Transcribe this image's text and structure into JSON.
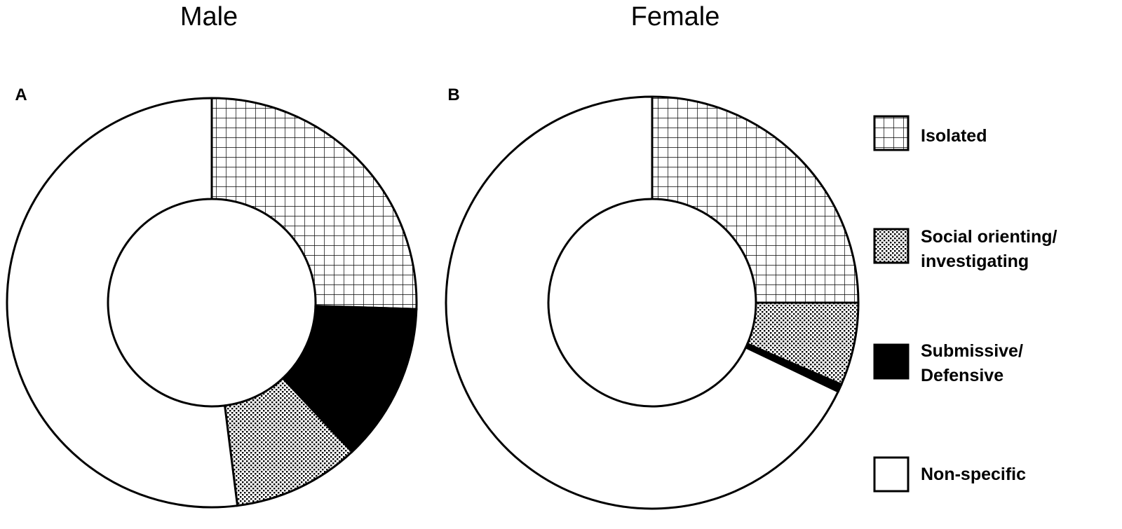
{
  "chart_data": [
    {
      "type": "pie",
      "panel": "A",
      "title": "Male",
      "slices": [
        {
          "label": "Isolated",
          "value": 25.5
        },
        {
          "label": "Submissive/ Defensive",
          "value": 12.5
        },
        {
          "label": "Social orienting/ investigating",
          "value": 10.0
        },
        {
          "label": "Non-specific",
          "value": 52.0
        }
      ]
    },
    {
      "type": "pie",
      "panel": "B",
      "title": "Female",
      "slices": [
        {
          "label": "Isolated",
          "value": 25.0
        },
        {
          "label": "Social orienting/ investigating",
          "value": 6.5
        },
        {
          "label": "Submissive/ Defensive",
          "value": 0.6
        },
        {
          "label": "Non-specific",
          "value": 67.9
        }
      ]
    }
  ],
  "legend": {
    "placement": "right",
    "items": [
      {
        "key": "isolated",
        "lines": [
          "Isolated"
        ],
        "pattern": "grid"
      },
      {
        "key": "social",
        "lines": [
          "Social orienting/",
          "investigating"
        ],
        "pattern": "dots"
      },
      {
        "key": "submissive",
        "lines": [
          "Submissive/",
          "Defensive"
        ],
        "pattern": "solid"
      },
      {
        "key": "nonspecific",
        "lines": [
          "Non-specific"
        ],
        "pattern": "none"
      }
    ]
  },
  "colors": {
    "ink": "#000000",
    "paper": "#ffffff"
  }
}
